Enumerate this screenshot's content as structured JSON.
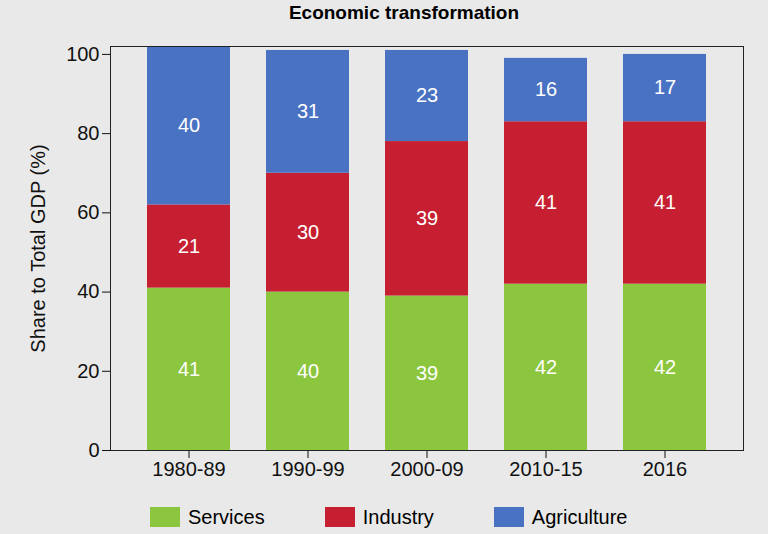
{
  "chart_data": {
    "type": "bar",
    "title": "Economic transformation",
    "y_label": "Share to Total GDP (%)",
    "categories": [
      "1980-89",
      "1990-99",
      "2000-09",
      "2010-15",
      "2016"
    ],
    "series": [
      {
        "name": "Services",
        "color": "#8cc63e",
        "values": [
          41,
          40,
          39,
          42,
          42
        ]
      },
      {
        "name": "Industry",
        "color": "#c61f31",
        "values": [
          21,
          30,
          39,
          41,
          41
        ]
      },
      {
        "name": "Agriculture",
        "color": "#4a72c2",
        "values": [
          40,
          31,
          23,
          16,
          17
        ]
      }
    ],
    "stacked": true,
    "data_labels": true,
    "ylim": [
      0,
      102
    ],
    "yticks": [
      0,
      20,
      40,
      60,
      80,
      100
    ],
    "legend": "bottom"
  }
}
